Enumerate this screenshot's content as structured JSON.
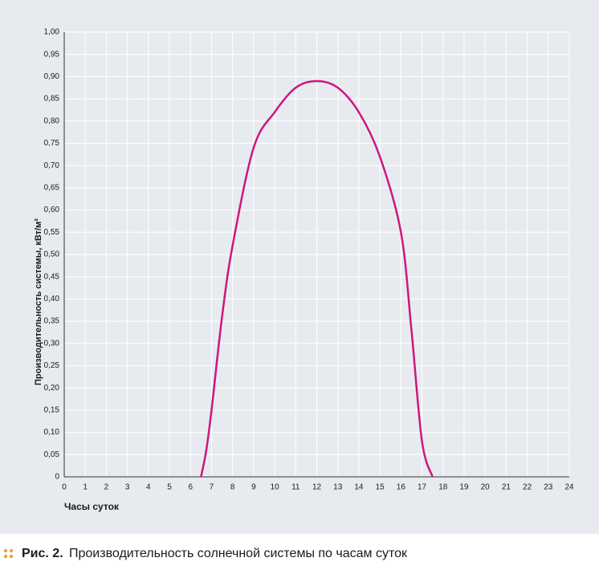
{
  "chart_data": {
    "type": "line",
    "y_label": "Производительность системы, кВт/м²",
    "x_label": "Часы суток",
    "x": [
      6.5,
      6.75,
      7,
      7.5,
      8,
      9,
      10,
      11,
      12,
      13,
      14,
      15,
      16,
      16.5,
      17,
      17.5
    ],
    "series": [
      {
        "color": "#d0157f",
        "values": [
          0,
          0.06,
          0.15,
          0.36,
          0.52,
          0.74,
          0.82,
          0.875,
          0.89,
          0.875,
          0.82,
          0.72,
          0.55,
          0.33,
          0.08,
          0
        ]
      }
    ],
    "xlim": [
      0,
      24
    ],
    "xticks": [
      0,
      1,
      2,
      3,
      4,
      5,
      6,
      7,
      8,
      9,
      10,
      11,
      12,
      13,
      14,
      15,
      16,
      17,
      18,
      19,
      20,
      21,
      22,
      23,
      24
    ],
    "ylim": [
      0,
      1
    ],
    "yticks": [
      {
        "value": 0,
        "label": "0"
      },
      {
        "value": 0.05,
        "label": "0,05"
      },
      {
        "value": 0.1,
        "label": "0,10"
      },
      {
        "value": 0.15,
        "label": "0,15"
      },
      {
        "value": 0.2,
        "label": "0,20"
      },
      {
        "value": 0.25,
        "label": "0,25"
      },
      {
        "value": 0.3,
        "label": "0,30"
      },
      {
        "value": 0.35,
        "label": "0,35"
      },
      {
        "value": 0.4,
        "label": "0,40"
      },
      {
        "value": 0.45,
        "label": "0,45"
      },
      {
        "value": 0.5,
        "label": "0,50"
      },
      {
        "value": 0.55,
        "label": "0,55"
      },
      {
        "value": 0.6,
        "label": "0,60"
      },
      {
        "value": 0.65,
        "label": "0,65"
      },
      {
        "value": 0.7,
        "label": "0,70"
      },
      {
        "value": 0.75,
        "label": "0,75"
      },
      {
        "value": 0.8,
        "label": "0,80"
      },
      {
        "value": 0.85,
        "label": "0,85"
      },
      {
        "value": 0.9,
        "label": "0,90"
      },
      {
        "value": 0.95,
        "label": "0,95"
      },
      {
        "value": 1,
        "label": "1,00"
      }
    ],
    "grid": true
  },
  "figure": {
    "label": "Рис. 2.",
    "text": "Производительность солнечной системы по часам суток"
  }
}
